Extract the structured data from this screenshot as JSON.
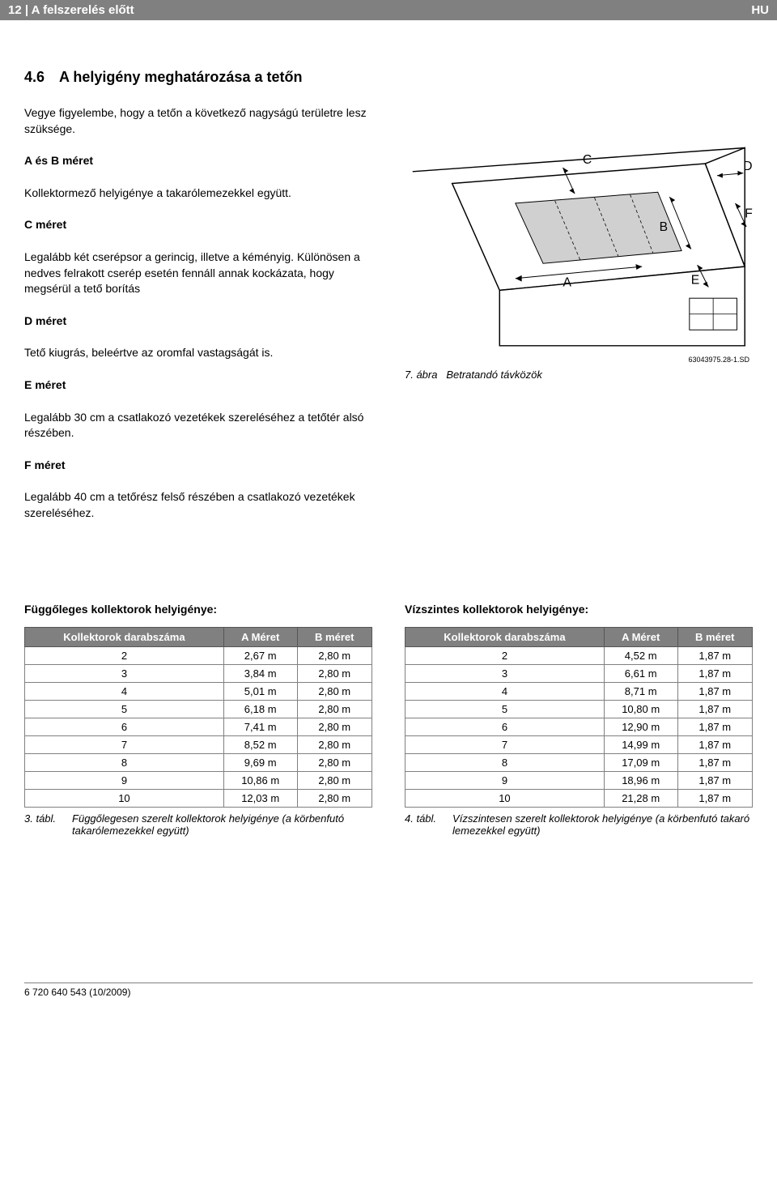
{
  "header": {
    "left": "12 | A felszerelés előtt",
    "right": "HU"
  },
  "section": {
    "number": "4.6",
    "title": "A helyigény meghatározása a tetőn"
  },
  "intro": "Vegye figyelembe, hogy a tetőn a következő nagyságú területre lesz szüksége.",
  "defs": {
    "ab_title": "A és B méret",
    "ab_text": "Kollektormező helyigénye a takarólemezekkel együtt.",
    "c_title": "C méret",
    "c_text": "Legalább két cserépsor a gerincig, illetve a kéményig. Különösen a nedves felrakott cserép esetén fennáll annak kockázata, hogy megsérül a tető borítás",
    "d_title": "D méret",
    "d_text": "Tető kiugrás, beleértve az oromfal vastagságát is.",
    "e_title": "E méret",
    "e_text": "Legalább 30 cm a csatlakozó vezetékek szereléséhez a tetőtér alsó részében.",
    "f_title": "F méret",
    "f_text": "Legalább 40 cm a tetőrész felső részében a csatlakozó vezetékek szereléséhez."
  },
  "figure": {
    "ref": "63043975.28-1.SD",
    "caption_num": "7. ábra",
    "caption_text": "Betratandó távközök",
    "labels": {
      "A": "A",
      "B": "B",
      "C": "C",
      "D": "D",
      "E": "E",
      "F": "F"
    }
  },
  "table1": {
    "title": "Függőleges kollektorok helyigénye:",
    "col1": "Kollektorok darabszáma",
    "col2": "A Méret",
    "col3": "B méret",
    "rows": [
      [
        "2",
        "2,67 m",
        "2,80 m"
      ],
      [
        "3",
        "3,84 m",
        "2,80 m"
      ],
      [
        "4",
        "5,01 m",
        "2,80 m"
      ],
      [
        "5",
        "6,18 m",
        "2,80 m"
      ],
      [
        "6",
        "7,41 m",
        "2,80 m"
      ],
      [
        "7",
        "8,52 m",
        "2,80 m"
      ],
      [
        "8",
        "9,69 m",
        "2,80 m"
      ],
      [
        "9",
        "10,86 m",
        "2,80 m"
      ],
      [
        "10",
        "12,03 m",
        "2,80 m"
      ]
    ],
    "caption_num": "3. tábl.",
    "caption_text": "Függőlegesen szerelt kollektorok helyigénye (a körbenfutó takarólemezekkel együtt)"
  },
  "table2": {
    "title": "Vízszintes kollektorok helyigénye:",
    "col1": "Kollektorok darabszáma",
    "col2": "A Méret",
    "col3": "B méret",
    "rows": [
      [
        "2",
        "4,52 m",
        "1,87 m"
      ],
      [
        "3",
        "6,61 m",
        "1,87 m"
      ],
      [
        "4",
        "8,71 m",
        "1,87 m"
      ],
      [
        "5",
        "10,80 m",
        "1,87 m"
      ],
      [
        "6",
        "12,90 m",
        "1,87 m"
      ],
      [
        "7",
        "14,99 m",
        "1,87 m"
      ],
      [
        "8",
        "17,09 m",
        "1,87 m"
      ],
      [
        "9",
        "18,96 m",
        "1,87 m"
      ],
      [
        "10",
        "21,28 m",
        "1,87 m"
      ]
    ],
    "caption_num": "4. tábl.",
    "caption_text": "Vízszintesen szerelt kollektorok helyigénye (a körbenfutó takaró lemezekkel együtt)"
  },
  "footer": "6 720 640 543 (10/2009)",
  "colors": {
    "header_bg": "#808080",
    "header_fg": "#ffffff",
    "border": "#808080"
  }
}
